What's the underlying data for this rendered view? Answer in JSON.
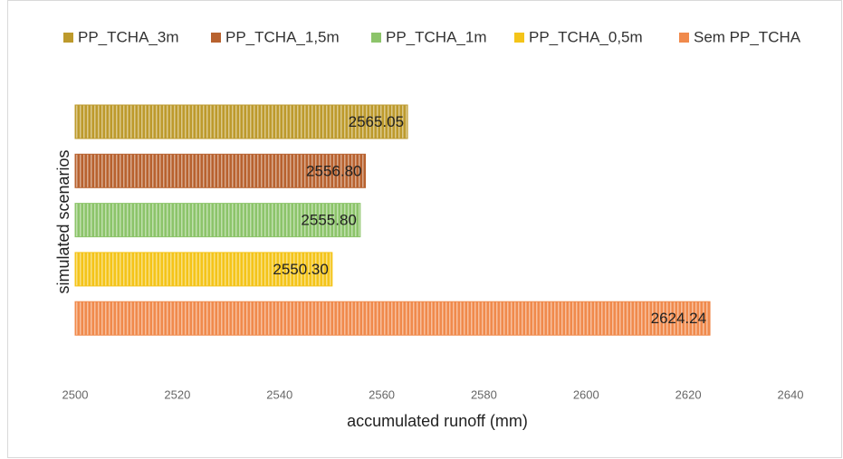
{
  "chart_data": {
    "type": "bar",
    "orientation": "horizontal",
    "xlabel": "accumulated runoff (mm)",
    "ylabel": "simulated scenarios",
    "series": [
      {
        "name": "PP_TCHA_3m",
        "color": "#bd9a2c",
        "values": [
          2565.05
        ],
        "value_labels": [
          "2565.05"
        ]
      },
      {
        "name": "PP_TCHA_1,5m",
        "color": "#b8622f",
        "values": [
          2556.8
        ],
        "value_labels": [
          "2556.80"
        ]
      },
      {
        "name": "PP_TCHA_1m",
        "color": "#8cc46a",
        "values": [
          2555.8
        ],
        "value_labels": [
          "2555.80"
        ]
      },
      {
        "name": "PP_TCHA_0,5m",
        "color": "#f4c419",
        "values": [
          2550.3
        ],
        "value_labels": [
          "2550.30"
        ]
      },
      {
        "name": "Sem PP_TCHA",
        "color": "#f08a4c",
        "values": [
          2624.24
        ],
        "value_labels": [
          "2624.24"
        ]
      }
    ],
    "xlim": [
      2500,
      2640
    ],
    "xticks": [
      2500,
      2520,
      2540,
      2560,
      2580,
      2600,
      2620,
      2640
    ],
    "legend": "top",
    "grid": false
  }
}
